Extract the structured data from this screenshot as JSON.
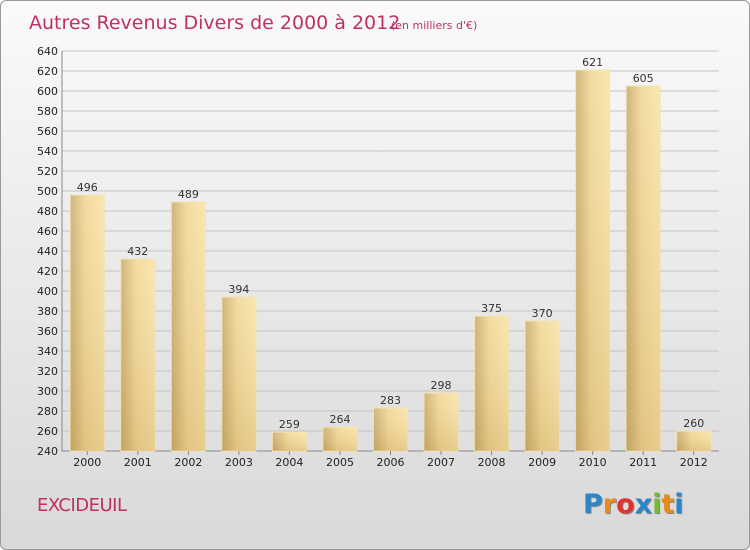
{
  "chart_data": {
    "type": "bar",
    "title": "Autres Revenus Divers de 2000 à 2012",
    "subtitle": "(en milliers d'€)",
    "categories": [
      "2000",
      "2001",
      "2002",
      "2003",
      "2004",
      "2005",
      "2006",
      "2007",
      "2008",
      "2009",
      "2010",
      "2011",
      "2012"
    ],
    "values": [
      496,
      432,
      489,
      394,
      259,
      264,
      283,
      298,
      375,
      370,
      621,
      605,
      260
    ],
    "value_labels": [
      "496",
      "432",
      "489",
      "394",
      "259",
      "264",
      "283",
      "298",
      "375",
      "370",
      "621",
      "605",
      "260"
    ],
    "y_ticks": [
      "240",
      "260",
      "280",
      "300",
      "320",
      "340",
      "360",
      "380",
      "400",
      "420",
      "440",
      "460",
      "480",
      "500",
      "520",
      "540",
      "560",
      "580",
      "600",
      "620",
      "640"
    ],
    "ylim": [
      240,
      640
    ],
    "grid": true,
    "xlabel": "",
    "ylabel": ""
  },
  "footer": {
    "commune": "EXCIDEUIL"
  },
  "logo": {
    "text": "Proxiti",
    "letters": [
      "P",
      "r",
      "o",
      "x",
      "i",
      "t",
      "i"
    ],
    "colors": [
      "#2b86c8",
      "#e98a1c",
      "#e0332f",
      "#2b86c8",
      "#79b73b",
      "#e98a1c",
      "#2b86c8"
    ]
  },
  "colors": {
    "title": "#c0315e",
    "bar_light": "#f7dc94",
    "bar_dark": "#c8aa6a",
    "grid": "#bdbdbd"
  }
}
